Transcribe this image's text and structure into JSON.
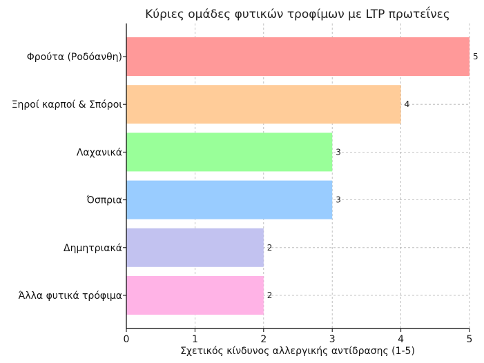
{
  "chart_data": {
    "type": "bar",
    "orientation": "horizontal",
    "title": "Κύριες ομάδες φυτικών τροφίμων με LTP πρωτεΐνες",
    "xlabel": "Σχετικός κίνδυνος αλλεργικής αντίδρασης (1-5)",
    "ylabel": "",
    "xlim": [
      0,
      5
    ],
    "xticks": [
      "0",
      "1",
      "2",
      "3",
      "4",
      "5"
    ],
    "grid": true,
    "categories": [
      "Φρούτα (Ροδόανθη)",
      "Ξηροί καρποί & Σπόροι",
      "Λαχανικά",
      "Όσπρια",
      "Δημητριακά",
      "Άλλα φυτικά τρόφιμα"
    ],
    "values": [
      5,
      4,
      3,
      3,
      2,
      2
    ],
    "value_labels": [
      "5",
      "4",
      "3",
      "3",
      "2",
      "2"
    ],
    "colors": [
      "#ff9999",
      "#ffcc99",
      "#99ff99",
      "#99ccff",
      "#c2c2f0",
      "#ffb3e6"
    ]
  }
}
